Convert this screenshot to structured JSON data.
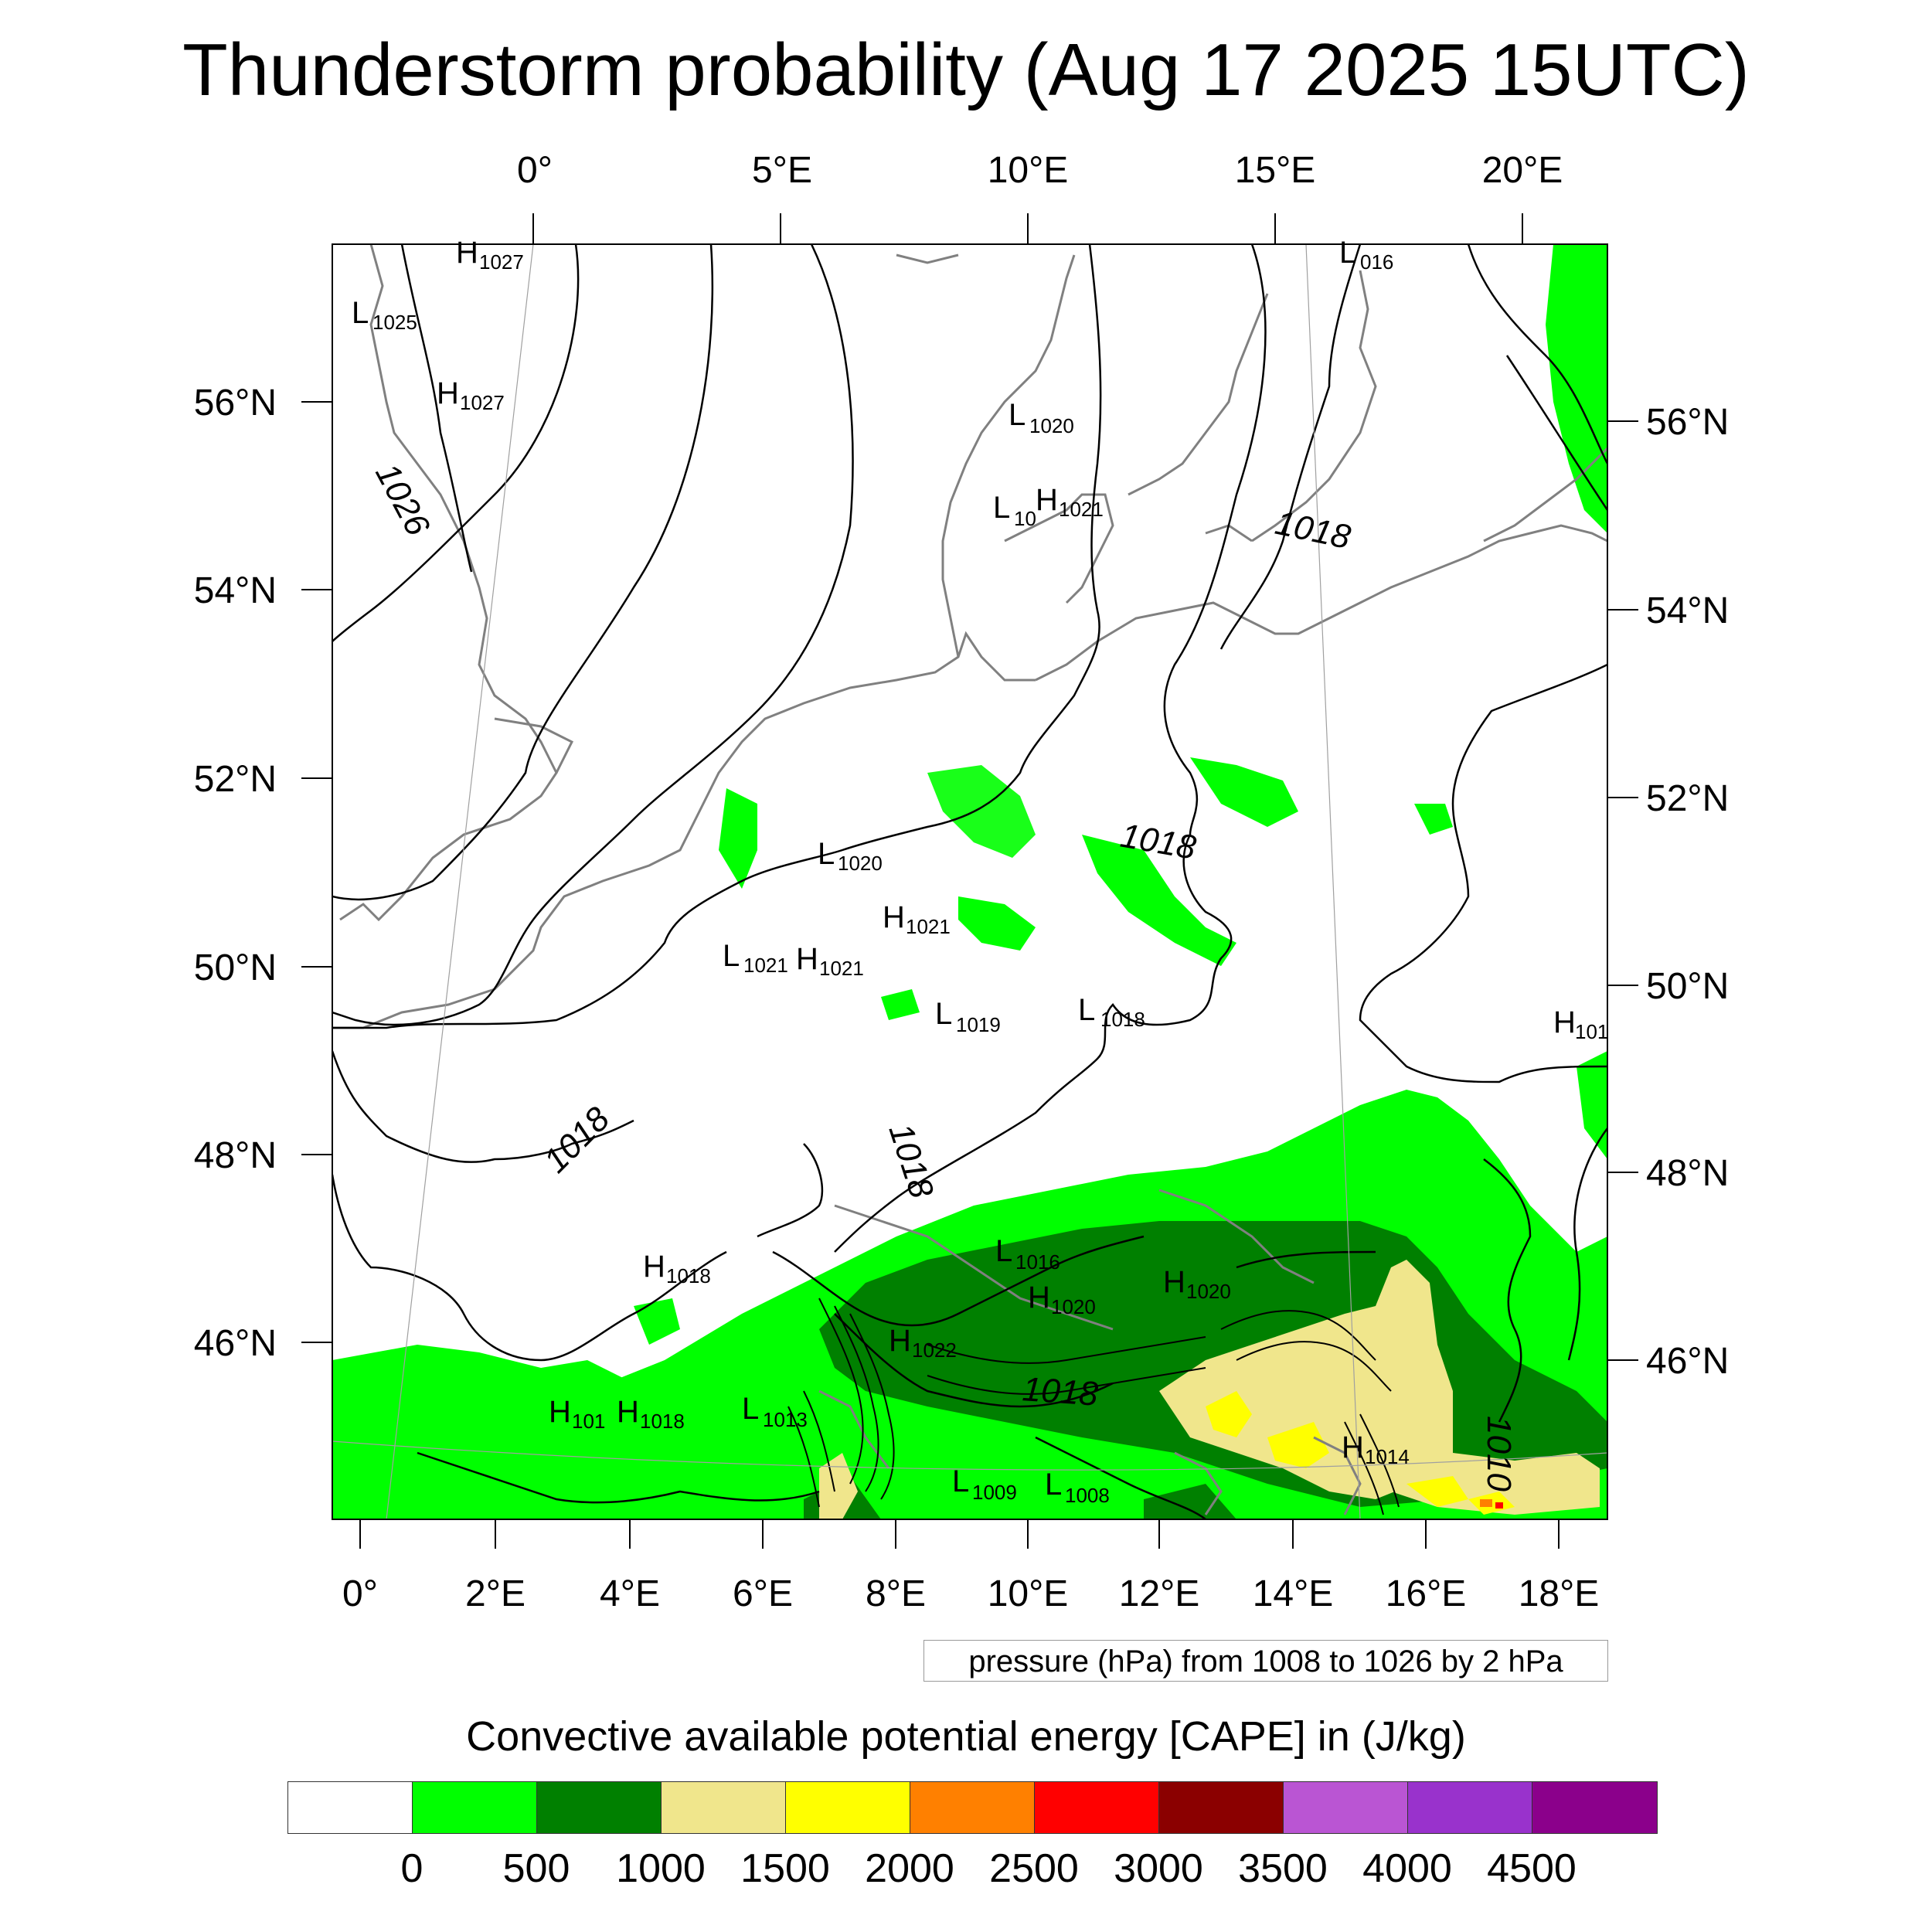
{
  "title": "Thunderstorm probability (Aug 17 2025 15UTC)",
  "axes": {
    "top_ticks": [
      "0°",
      "5°E",
      "10°E",
      "15°E",
      "20°E"
    ],
    "bottom_ticks": [
      "0°",
      "2°E",
      "4°E",
      "6°E",
      "8°E",
      "10°E",
      "12°E",
      "14°E",
      "16°E",
      "18°E"
    ],
    "left_ticks": [
      "56°N",
      "54°N",
      "52°N",
      "50°N",
      "48°N",
      "46°N"
    ],
    "right_ticks": [
      "56°N",
      "54°N",
      "52°N",
      "50°N",
      "48°N",
      "46°N"
    ]
  },
  "pressure_centers": [
    {
      "type": "H",
      "value": "1027"
    },
    {
      "type": "L",
      "value": "1025"
    },
    {
      "type": "H",
      "value": "1027"
    },
    {
      "type": "L",
      "value": "016"
    },
    {
      "type": "L",
      "value": "1020"
    },
    {
      "type": "L",
      "value": "10"
    },
    {
      "type": "H",
      "value": "1021"
    },
    {
      "type": "L",
      "value": "1020"
    },
    {
      "type": "H",
      "value": "1021"
    },
    {
      "type": "L",
      "value": "1021"
    },
    {
      "type": "H",
      "value": "1021"
    },
    {
      "type": "L",
      "value": "1019"
    },
    {
      "type": "L",
      "value": "1018"
    },
    {
      "type": "H",
      "value": "101"
    },
    {
      "type": "H",
      "value": "1018"
    },
    {
      "type": "L",
      "value": "1016"
    },
    {
      "type": "H",
      "value": "1020"
    },
    {
      "type": "H",
      "value": "1020"
    },
    {
      "type": "H",
      "value": "1022"
    },
    {
      "type": "H",
      "value": "101"
    },
    {
      "type": "H",
      "value": "1018"
    },
    {
      "type": "L",
      "value": "1013"
    },
    {
      "type": "L",
      "value": "1009"
    },
    {
      "type": "L",
      "value": "1008"
    },
    {
      "type": "H",
      "value": "1014"
    }
  ],
  "contour_labels": [
    "1026",
    "1018",
    "1018",
    "1018",
    "1018",
    "1018",
    "1010"
  ],
  "pressure_note": "pressure (hPa) from 1008 to 1026 by 2 hPa",
  "colorbar": {
    "title": "Convective available potential energy [CAPE] in (J/kg)",
    "colors": [
      "#ffffff",
      "#00ff00",
      "#008000",
      "#f0e68c",
      "#ffff00",
      "#ff8000",
      "#ff0000",
      "#8b0000",
      "#ba55d3",
      "#9932cc",
      "#8b008b"
    ],
    "labels": [
      "0",
      "500",
      "1000",
      "1500",
      "2000",
      "2500",
      "3000",
      "3500",
      "4000",
      "4500"
    ]
  }
}
